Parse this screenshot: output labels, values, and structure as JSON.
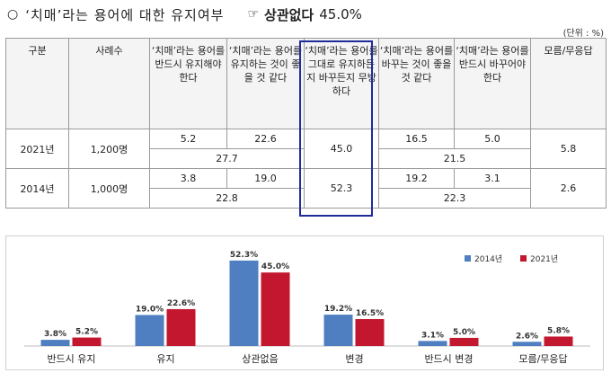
{
  "heading": {
    "bullet": "○",
    "question": "‘치매’라는 용어에 대한 유지여부",
    "pointer": "☞",
    "conclusion_label": "상관없다",
    "conclusion_value": "45.0%"
  },
  "unit": "(단위 : %)",
  "table": {
    "headers": {
      "category": "구분",
      "sample": "사례수",
      "opt1": "‘치매’라는 용어를 반드시 유지해야 한다",
      "opt2": "‘치매’라는 용어를 유지하는 것이 좋을 것 같다",
      "opt3": "‘치매’라는 용어를 그대로 유지하든지 바꾸든지 무방하다",
      "opt4": "‘치매’라는 용어를 바꾸는 것이 좋을 것 같다",
      "opt5": "‘치매’라는 용어를 반드시 바꾸어야 한다",
      "opt6": "모름/무응답"
    },
    "rows": [
      {
        "year": "2021년",
        "n": "1,200명",
        "v1": "5.2",
        "v2": "22.6",
        "v3": "45.0",
        "v4": "16.5",
        "v5": "5.0",
        "v6": "5.8",
        "keep_total": "27.7",
        "change_total": "21.5"
      },
      {
        "year": "2014년",
        "n": "1,000명",
        "v1": "3.8",
        "v2": "19.0",
        "v3": "52.3",
        "v4": "19.2",
        "v5": "3.1",
        "v6": "2.6",
        "keep_total": "22.8",
        "change_total": "22.3"
      }
    ]
  },
  "colors": {
    "series_2014": "#4f7fc1",
    "series_2021": "#c3172f",
    "highlight_frame": "#1f2c9a"
  },
  "chart_data": {
    "type": "bar",
    "categories": [
      "반드시 유지",
      "유지",
      "상관없음",
      "변경",
      "반드시 변경",
      "모름/무응답"
    ],
    "series": [
      {
        "name": "2014년",
        "values": [
          3.8,
          19.0,
          52.3,
          19.2,
          3.1,
          2.6
        ]
      },
      {
        "name": "2021년",
        "values": [
          5.2,
          22.6,
          45.0,
          16.5,
          5.0,
          5.8
        ]
      }
    ],
    "value_labels": [
      [
        "3.8%",
        "19.0%",
        "52.3%",
        "19.2%",
        "3.1%",
        "2.6%"
      ],
      [
        "5.2%",
        "22.6%",
        "45.0%",
        "16.5%",
        "5.0%",
        "5.8%"
      ]
    ],
    "legend_position": "top-right",
    "grid": false,
    "ylim": [
      0,
      55
    ]
  }
}
